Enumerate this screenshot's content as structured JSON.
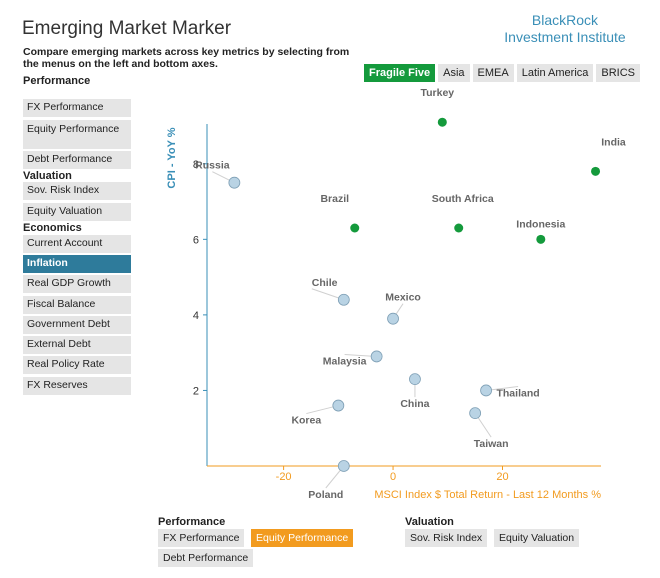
{
  "header": {
    "title": "Emerging Market Marker",
    "subtitle": "Compare emerging markets across key metrics by selecting from the menus on the left and bottom axes.",
    "brand_line1": "BlackRock",
    "brand_line2": "Investment Institute"
  },
  "region_filters": [
    {
      "label": "Fragile Five",
      "active": true
    },
    {
      "label": "Asia",
      "active": false
    },
    {
      "label": "EMEA",
      "active": false
    },
    {
      "label": "Latin America",
      "active": false
    },
    {
      "label": "BRICS",
      "active": false
    }
  ],
  "left_menu": {
    "performance_title": "Performance",
    "performance": [
      "FX Performance",
      "Equity Performance",
      "Debt Performance"
    ],
    "valuation_title": "Valuation",
    "valuation": [
      "Sov. Risk Index",
      "Equity Valuation"
    ],
    "economics_title": "Economics",
    "economics": [
      "Current Account",
      "Inflation",
      "Real GDP Growth",
      "Fiscal Balance",
      "Government Debt",
      "External Debt",
      "Real Policy Rate",
      "FX Reserves"
    ],
    "active": "Inflation"
  },
  "bottom_menu": {
    "performance_title": "Performance",
    "performance": [
      "FX Performance",
      "Equity Performance",
      "Debt Performance"
    ],
    "valuation_title": "Valuation",
    "valuation": [
      "Sov. Risk Index",
      "Equity Valuation"
    ],
    "active": "Equity Performance"
  },
  "colors": {
    "highlight": "#149a3c",
    "other": "#b9d3e4",
    "other_stroke": "#7e9fb5",
    "y_axis": "#3a8fb7",
    "x_axis": "#f29b1f"
  },
  "chart_data": {
    "type": "scatter",
    "xlabel": "MSCI Index $ Total Return - Last 12 Months %",
    "ylabel": "CPI - YoY %",
    "xlim": [
      -34,
      38
    ],
    "ylim": [
      0,
      9
    ],
    "xticks": [
      -20,
      0,
      20
    ],
    "yticks": [
      2,
      4,
      6,
      8
    ],
    "points": [
      {
        "name": "Turkey",
        "x": 9,
        "y": 9.1,
        "highlight": true
      },
      {
        "name": "India",
        "x": 37,
        "y": 7.8,
        "highlight": true
      },
      {
        "name": "Russia",
        "x": -29,
        "y": 7.5,
        "highlight": false
      },
      {
        "name": "Brazil",
        "x": -7,
        "y": 6.3,
        "highlight": true
      },
      {
        "name": "South Africa",
        "x": 12,
        "y": 6.3,
        "highlight": true
      },
      {
        "name": "Indonesia",
        "x": 27,
        "y": 6.0,
        "highlight": true
      },
      {
        "name": "Chile",
        "x": -9,
        "y": 4.4,
        "highlight": false
      },
      {
        "name": "Mexico",
        "x": 0,
        "y": 3.9,
        "highlight": false
      },
      {
        "name": "Malaysia",
        "x": -3,
        "y": 2.9,
        "highlight": false
      },
      {
        "name": "China",
        "x": 4,
        "y": 2.3,
        "highlight": false
      },
      {
        "name": "Thailand",
        "x": 17,
        "y": 2.0,
        "highlight": false
      },
      {
        "name": "Korea",
        "x": -10,
        "y": 1.6,
        "highlight": false
      },
      {
        "name": "Taiwan",
        "x": 15,
        "y": 1.4,
        "highlight": false
      },
      {
        "name": "Poland",
        "x": -9,
        "y": 0.0,
        "highlight": false
      }
    ]
  }
}
